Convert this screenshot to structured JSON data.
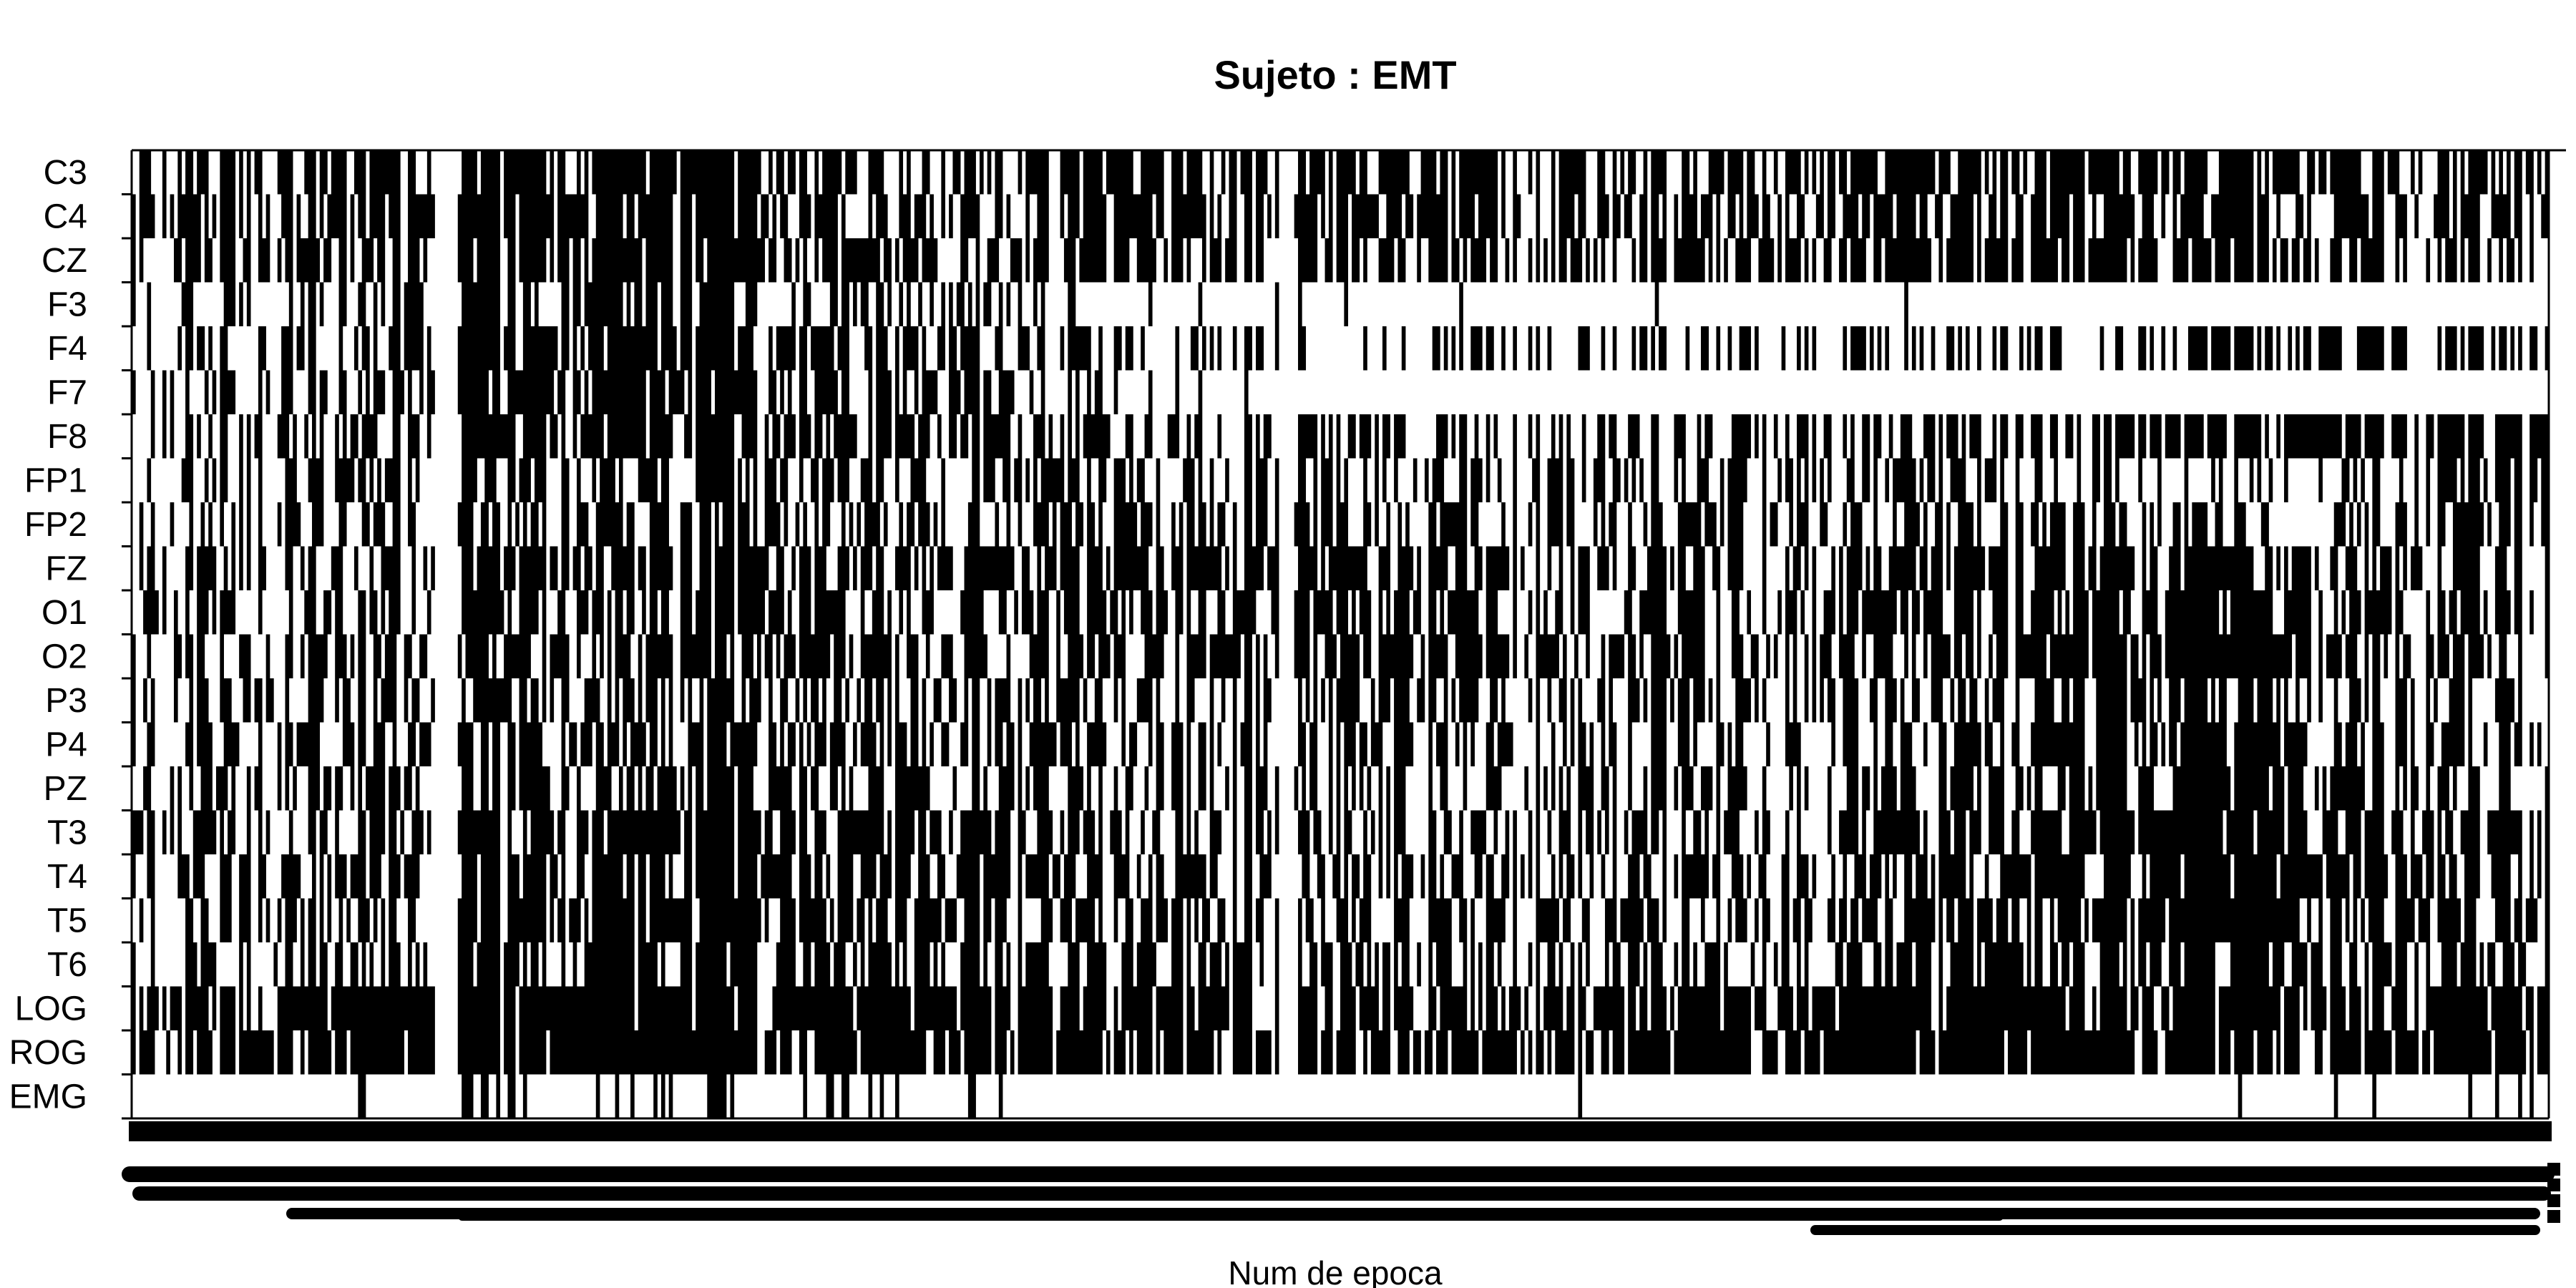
{
  "chart_data": {
    "type": "heatmap",
    "title": "Sujeto : EMT",
    "xlabel": "Num de epoca",
    "ylabel": "",
    "grid": false,
    "legend": "none",
    "colors": {
      "marked": "#000000",
      "background": "#ffffff"
    },
    "epochs": 630,
    "channels": [
      "C3",
      "C4",
      "CZ",
      "F3",
      "F4",
      "F7",
      "F8",
      "FP1",
      "FP2",
      "FZ",
      "O1",
      "O2",
      "P3",
      "P4",
      "PZ",
      "T3",
      "T4",
      "T5",
      "T6",
      "LOG",
      "ROG",
      "EMG"
    ],
    "x_tick_labels": "rotated per-epoch numbers, overprinted and illegible",
    "channel_density_profiles": {
      "C3": [
        [
          0,
          0.55
        ],
        [
          0.08,
          0.6
        ],
        [
          0.2,
          0.7
        ],
        [
          0.35,
          0.5
        ],
        [
          0.5,
          0.6
        ],
        [
          0.65,
          0.55
        ],
        [
          0.8,
          0.6
        ],
        [
          0.9,
          0.55
        ],
        [
          1,
          0.5
        ]
      ],
      "C4": [
        [
          0,
          0.55
        ],
        [
          0.08,
          0.6
        ],
        [
          0.2,
          0.7
        ],
        [
          0.35,
          0.5
        ],
        [
          0.5,
          0.6
        ],
        [
          0.65,
          0.55
        ],
        [
          0.8,
          0.65
        ],
        [
          0.9,
          0.6
        ],
        [
          1,
          0.55
        ]
      ],
      "CZ": [
        [
          0,
          0.5
        ],
        [
          0.08,
          0.55
        ],
        [
          0.2,
          0.65
        ],
        [
          0.35,
          0.5
        ],
        [
          0.5,
          0.55
        ],
        [
          0.65,
          0.55
        ],
        [
          0.8,
          0.6
        ],
        [
          0.9,
          0.55
        ],
        [
          1,
          0.5
        ]
      ],
      "F3": [
        [
          0,
          0.45
        ],
        [
          0.08,
          0.45
        ],
        [
          0.2,
          0.6
        ],
        [
          0.35,
          0.5
        ],
        [
          0.4,
          0.15
        ],
        [
          0.6,
          0.08
        ],
        [
          0.8,
          0.05
        ],
        [
          1,
          0.03
        ]
      ],
      "F4": [
        [
          0,
          0.4
        ],
        [
          0.08,
          0.5
        ],
        [
          0.2,
          0.65
        ],
        [
          0.35,
          0.55
        ],
        [
          0.45,
          0.3
        ],
        [
          0.6,
          0.4
        ],
        [
          0.8,
          0.45
        ],
        [
          1,
          0.55
        ]
      ],
      "F7": [
        [
          0,
          0.4
        ],
        [
          0.08,
          0.45
        ],
        [
          0.2,
          0.7
        ],
        [
          0.35,
          0.55
        ],
        [
          0.45,
          0.12
        ],
        [
          0.6,
          0.05
        ],
        [
          1,
          0.02
        ]
      ],
      "F8": [
        [
          0,
          0.45
        ],
        [
          0.08,
          0.5
        ],
        [
          0.2,
          0.7
        ],
        [
          0.35,
          0.55
        ],
        [
          0.5,
          0.45
        ],
        [
          0.7,
          0.5
        ],
        [
          0.85,
          0.55
        ],
        [
          1,
          0.7
        ]
      ],
      "FP1": [
        [
          0,
          0.4
        ],
        [
          0.08,
          0.45
        ],
        [
          0.2,
          0.55
        ],
        [
          0.35,
          0.5
        ],
        [
          0.5,
          0.45
        ],
        [
          0.7,
          0.5
        ],
        [
          0.82,
          0.45
        ],
        [
          0.88,
          0.3
        ],
        [
          1,
          0.6
        ]
      ],
      "FP2": [
        [
          0,
          0.4
        ],
        [
          0.08,
          0.45
        ],
        [
          0.2,
          0.55
        ],
        [
          0.35,
          0.5
        ],
        [
          0.5,
          0.45
        ],
        [
          0.7,
          0.5
        ],
        [
          0.82,
          0.45
        ],
        [
          0.88,
          0.3
        ],
        [
          1,
          0.6
        ]
      ],
      "FZ": [
        [
          0,
          0.45
        ],
        [
          0.08,
          0.5
        ],
        [
          0.2,
          0.6
        ],
        [
          0.35,
          0.55
        ],
        [
          0.5,
          0.55
        ],
        [
          0.7,
          0.5
        ],
        [
          0.85,
          0.65
        ],
        [
          1,
          0.5
        ]
      ],
      "O1": [
        [
          0,
          0.5
        ],
        [
          0.08,
          0.5
        ],
        [
          0.2,
          0.6
        ],
        [
          0.35,
          0.55
        ],
        [
          0.5,
          0.55
        ],
        [
          0.7,
          0.5
        ],
        [
          0.85,
          0.7
        ],
        [
          1,
          0.45
        ]
      ],
      "O2": [
        [
          0,
          0.5
        ],
        [
          0.08,
          0.5
        ],
        [
          0.2,
          0.6
        ],
        [
          0.35,
          0.55
        ],
        [
          0.5,
          0.55
        ],
        [
          0.7,
          0.5
        ],
        [
          0.85,
          0.7
        ],
        [
          1,
          0.45
        ]
      ],
      "P3": [
        [
          0,
          0.45
        ],
        [
          0.08,
          0.5
        ],
        [
          0.2,
          0.55
        ],
        [
          0.35,
          0.5
        ],
        [
          0.5,
          0.5
        ],
        [
          0.7,
          0.45
        ],
        [
          0.85,
          0.65
        ],
        [
          1,
          0.4
        ]
      ],
      "P4": [
        [
          0,
          0.45
        ],
        [
          0.08,
          0.5
        ],
        [
          0.2,
          0.55
        ],
        [
          0.35,
          0.5
        ],
        [
          0.5,
          0.5
        ],
        [
          0.7,
          0.45
        ],
        [
          0.85,
          0.65
        ],
        [
          1,
          0.4
        ]
      ],
      "PZ": [
        [
          0,
          0.45
        ],
        [
          0.08,
          0.5
        ],
        [
          0.2,
          0.55
        ],
        [
          0.35,
          0.5
        ],
        [
          0.5,
          0.5
        ],
        [
          0.7,
          0.45
        ],
        [
          0.85,
          0.65
        ],
        [
          1,
          0.4
        ]
      ],
      "T3": [
        [
          0,
          0.5
        ],
        [
          0.08,
          0.5
        ],
        [
          0.2,
          0.7
        ],
        [
          0.35,
          0.55
        ],
        [
          0.5,
          0.5
        ],
        [
          0.7,
          0.5
        ],
        [
          0.85,
          0.7
        ],
        [
          1,
          0.5
        ]
      ],
      "T4": [
        [
          0,
          0.5
        ],
        [
          0.08,
          0.5
        ],
        [
          0.2,
          0.65
        ],
        [
          0.35,
          0.55
        ],
        [
          0.5,
          0.5
        ],
        [
          0.7,
          0.5
        ],
        [
          0.85,
          0.7
        ],
        [
          1,
          0.5
        ]
      ],
      "T5": [
        [
          0,
          0.5
        ],
        [
          0.08,
          0.5
        ],
        [
          0.2,
          0.7
        ],
        [
          0.35,
          0.55
        ],
        [
          0.5,
          0.5
        ],
        [
          0.7,
          0.5
        ],
        [
          0.85,
          0.7
        ],
        [
          1,
          0.5
        ]
      ],
      "T6": [
        [
          0,
          0.45
        ],
        [
          0.08,
          0.5
        ],
        [
          0.2,
          0.65
        ],
        [
          0.35,
          0.55
        ],
        [
          0.5,
          0.5
        ],
        [
          0.7,
          0.5
        ],
        [
          0.85,
          0.65
        ],
        [
          1,
          0.5
        ]
      ],
      "LOG": [
        [
          0,
          0.65
        ],
        [
          0.08,
          0.7
        ],
        [
          0.2,
          0.85
        ],
        [
          0.35,
          0.7
        ],
        [
          0.5,
          0.6
        ],
        [
          0.7,
          0.75
        ],
        [
          0.85,
          0.65
        ],
        [
          1,
          0.7
        ]
      ],
      "ROG": [
        [
          0,
          0.65
        ],
        [
          0.08,
          0.7
        ],
        [
          0.2,
          0.85
        ],
        [
          0.35,
          0.7
        ],
        [
          0.5,
          0.6
        ],
        [
          0.7,
          0.75
        ],
        [
          0.85,
          0.65
        ],
        [
          1,
          0.7
        ]
      ],
      "EMG": [
        [
          0,
          0.15
        ],
        [
          0.08,
          0.2
        ],
        [
          0.2,
          0.3
        ],
        [
          0.3,
          0.35
        ],
        [
          0.4,
          0.1
        ],
        [
          0.6,
          0.05
        ],
        [
          0.8,
          0.03
        ],
        [
          0.9,
          0.2
        ],
        [
          1,
          0.25
        ]
      ]
    },
    "blank_epoch_ranges": [
      [
        79,
        84
      ],
      [
        299,
        302
      ]
    ]
  }
}
